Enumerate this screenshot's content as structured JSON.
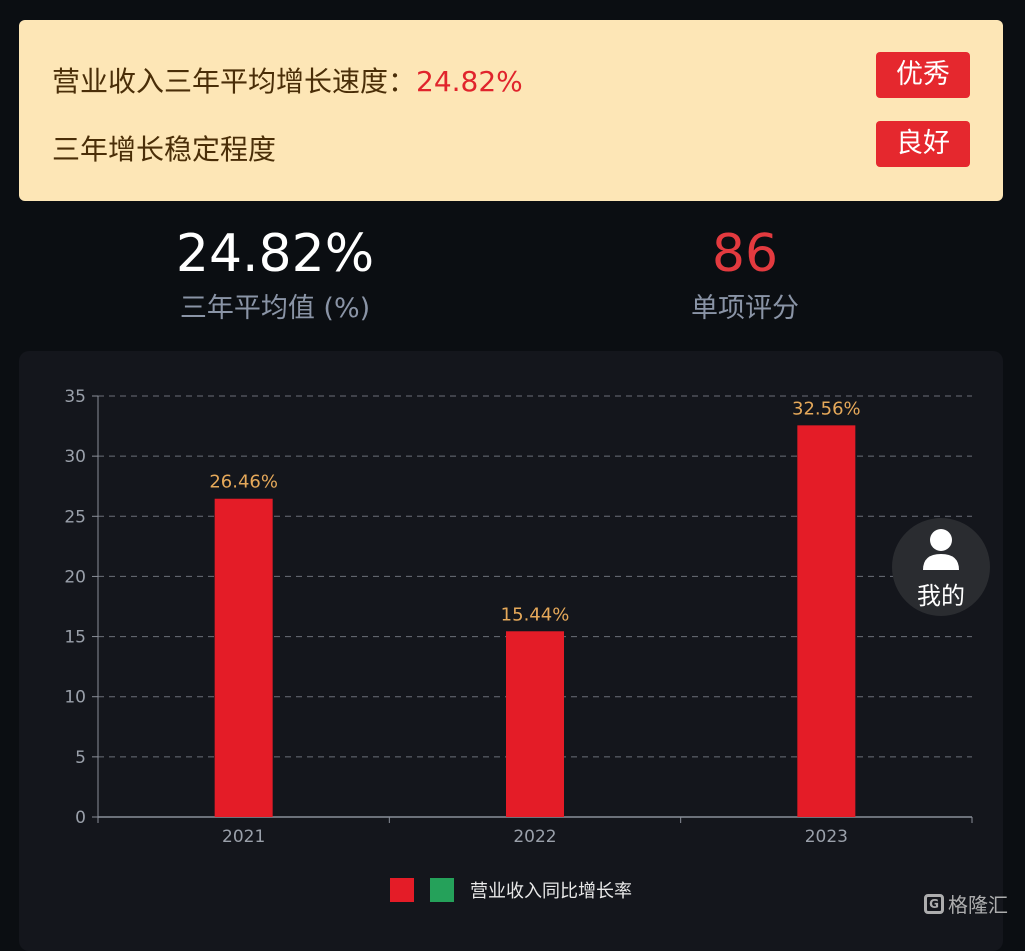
{
  "summary": {
    "metric_label": "营业收入三年平均增长速度：",
    "metric_value": "24.82%",
    "metric_rating": "优秀",
    "stability_label": "三年增长稳定程度",
    "stability_rating": "良好"
  },
  "stats": {
    "avg_value": "24.82%",
    "avg_label": "三年平均值 (%)",
    "score_value": "86",
    "score_label": "单项评分"
  },
  "fab": {
    "label": "我的",
    "icon": "user-icon"
  },
  "watermark": {
    "text": "格隆汇",
    "icon": "g-logo-icon"
  },
  "colors": {
    "bar": "#e41c27",
    "legend_green": "#25a15a",
    "label": "#e6a95a",
    "badge": "#e5282e",
    "card_bg": "#fde6b6"
  },
  "chart_data": {
    "type": "bar",
    "categories": [
      "2021",
      "2022",
      "2023"
    ],
    "series": [
      {
        "name": "营业收入同比增长率",
        "values": [
          26.46,
          15.44,
          32.56
        ]
      }
    ],
    "data_labels": [
      "26.46%",
      "15.44%",
      "32.56%"
    ],
    "yticks": [
      0,
      5,
      10,
      15,
      20,
      25,
      30,
      35
    ],
    "ylim": [
      0,
      35
    ],
    "grid": true,
    "legend_position": "bottom"
  }
}
